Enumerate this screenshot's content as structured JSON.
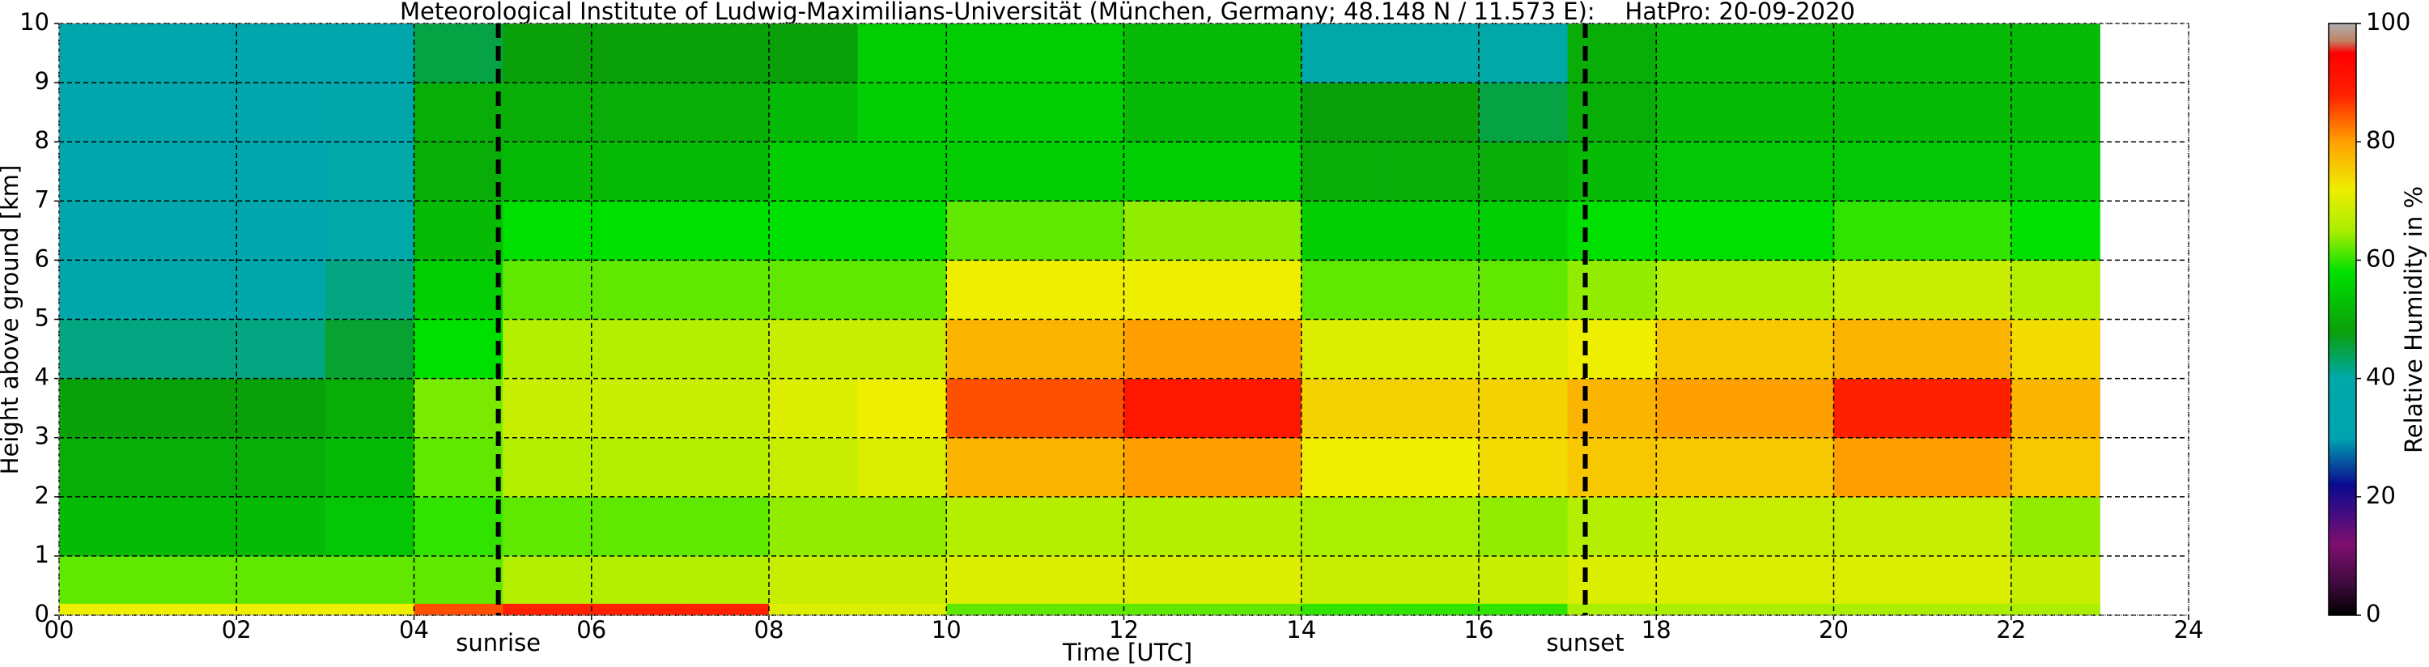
{
  "chart_data": {
    "type": "heatmap",
    "title": "Meteorological Institute of Ludwig-Maximilians-Universität (München, Germany; 48.148 N / 11.573 E):    HatPro: 20-09-2020",
    "x_label": "Time [UTC]",
    "y_label": "Height above ground [km]",
    "colorbar_label": "Relative Humidity in %",
    "xlim": [
      0,
      24
    ],
    "ylim": [
      0,
      10
    ],
    "xticks": [
      {
        "value": 0,
        "label": "00"
      },
      {
        "value": 2,
        "label": "02"
      },
      {
        "value": 4,
        "label": "04"
      },
      {
        "value": 6,
        "label": "06"
      },
      {
        "value": 8,
        "label": "08"
      },
      {
        "value": 10,
        "label": "10"
      },
      {
        "value": 12,
        "label": "12"
      },
      {
        "value": 14,
        "label": "14"
      },
      {
        "value": 16,
        "label": "16"
      },
      {
        "value": 18,
        "label": "18"
      },
      {
        "value": 20,
        "label": "20"
      },
      {
        "value": 22,
        "label": "22"
      },
      {
        "value": 24,
        "label": "24"
      }
    ],
    "yticks": [
      0,
      1,
      2,
      3,
      4,
      5,
      6,
      7,
      8,
      9,
      10
    ],
    "grid": true,
    "clim": [
      0,
      100
    ],
    "cticks": [
      0,
      20,
      40,
      60,
      80,
      100
    ],
    "colorscale": [
      [
        0,
        "#000000"
      ],
      [
        5,
        "#3a0a3a"
      ],
      [
        12,
        "#7f0f6f"
      ],
      [
        22,
        "#0a0a90"
      ],
      [
        30,
        "#00a4b0"
      ],
      [
        40,
        "#00a8a8"
      ],
      [
        48,
        "#0aa00a"
      ],
      [
        58,
        "#00e000"
      ],
      [
        65,
        "#aaee00"
      ],
      [
        72,
        "#eeee00"
      ],
      [
        80,
        "#ffa000"
      ],
      [
        88,
        "#ff2000"
      ],
      [
        95,
        "#ff0000"
      ],
      [
        97,
        "#c08060"
      ],
      [
        100,
        "#b0b0b0"
      ]
    ],
    "x_bins": [
      0,
      1,
      2,
      3,
      4,
      5,
      6,
      7,
      8,
      9,
      10,
      11,
      12,
      13,
      14,
      15,
      16,
      17,
      18,
      19,
      20,
      21,
      22,
      23
    ],
    "y_bins": [
      0,
      0.2,
      1,
      2,
      3,
      4,
      5,
      6,
      7,
      8,
      9,
      10
    ],
    "z": [
      [
        72,
        72,
        72,
        72,
        85,
        88,
        88,
        88,
        70,
        70,
        62,
        62,
        62,
        62,
        60,
        60,
        60,
        65,
        65,
        65,
        65,
        65,
        65
      ],
      [
        62,
        62,
        62,
        62,
        62,
        66,
        66,
        66,
        68,
        68,
        70,
        70,
        70,
        70,
        68,
        68,
        68,
        70,
        70,
        70,
        70,
        70,
        68
      ],
      [
        52,
        52,
        52,
        54,
        60,
        62,
        62,
        62,
        64,
        64,
        66,
        66,
        66,
        66,
        65,
        65,
        64,
        66,
        68,
        68,
        68,
        68,
        64
      ],
      [
        50,
        50,
        50,
        52,
        62,
        66,
        66,
        66,
        68,
        70,
        78,
        78,
        80,
        80,
        72,
        72,
        74,
        76,
        76,
        76,
        80,
        80,
        76
      ],
      [
        48,
        48,
        48,
        50,
        63,
        68,
        68,
        68,
        70,
        72,
        85,
        85,
        90,
        90,
        75,
        75,
        75,
        78,
        80,
        80,
        88,
        88,
        78
      ],
      [
        42,
        42,
        42,
        46,
        58,
        66,
        66,
        66,
        68,
        68,
        78,
        78,
        80,
        80,
        70,
        70,
        70,
        72,
        76,
        76,
        78,
        78,
        74
      ],
      [
        38,
        38,
        38,
        42,
        55,
        62,
        62,
        62,
        62,
        62,
        72,
        72,
        72,
        72,
        62,
        62,
        62,
        64,
        66,
        66,
        68,
        68,
        66
      ],
      [
        35,
        35,
        35,
        40,
        52,
        58,
        58,
        58,
        58,
        58,
        62,
        62,
        64,
        64,
        55,
        55,
        55,
        58,
        58,
        58,
        60,
        60,
        58
      ],
      [
        35,
        35,
        35,
        40,
        50,
        52,
        52,
        52,
        55,
        55,
        55,
        55,
        55,
        55,
        50,
        50,
        50,
        52,
        54,
        54,
        54,
        54,
        54
      ],
      [
        35,
        35,
        35,
        38,
        50,
        50,
        50,
        50,
        52,
        55,
        55,
        55,
        52,
        52,
        48,
        48,
        45,
        50,
        52,
        52,
        52,
        52,
        52
      ],
      [
        35,
        35,
        35,
        36,
        45,
        48,
        48,
        48,
        48,
        55,
        55,
        55,
        52,
        52,
        40,
        40,
        40,
        50,
        52,
        52,
        52,
        52,
        52
      ]
    ],
    "annotations": [
      {
        "x": 4.95,
        "text": "sunrise"
      },
      {
        "x": 17.2,
        "text": "sunset"
      }
    ]
  }
}
